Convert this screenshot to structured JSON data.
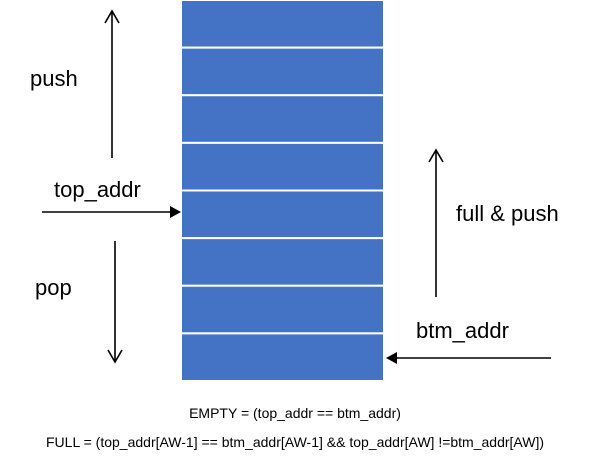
{
  "colors": {
    "slot_fill": "#4472C4",
    "slot_border": "#ffffff",
    "arrow": "#000000"
  },
  "stack": {
    "slot_count": 8
  },
  "labels": {
    "push": "push",
    "top_addr": "top_addr",
    "pop": "pop",
    "full_push": "full & push",
    "btm_addr": "btm_addr"
  },
  "conditions": {
    "empty": "EMPTY = (top_addr == btm_addr)",
    "full": "FULL = (top_addr[AW-1] == btm_addr[AW-1] && top_addr[AW] !=btm_addr[AW])"
  }
}
